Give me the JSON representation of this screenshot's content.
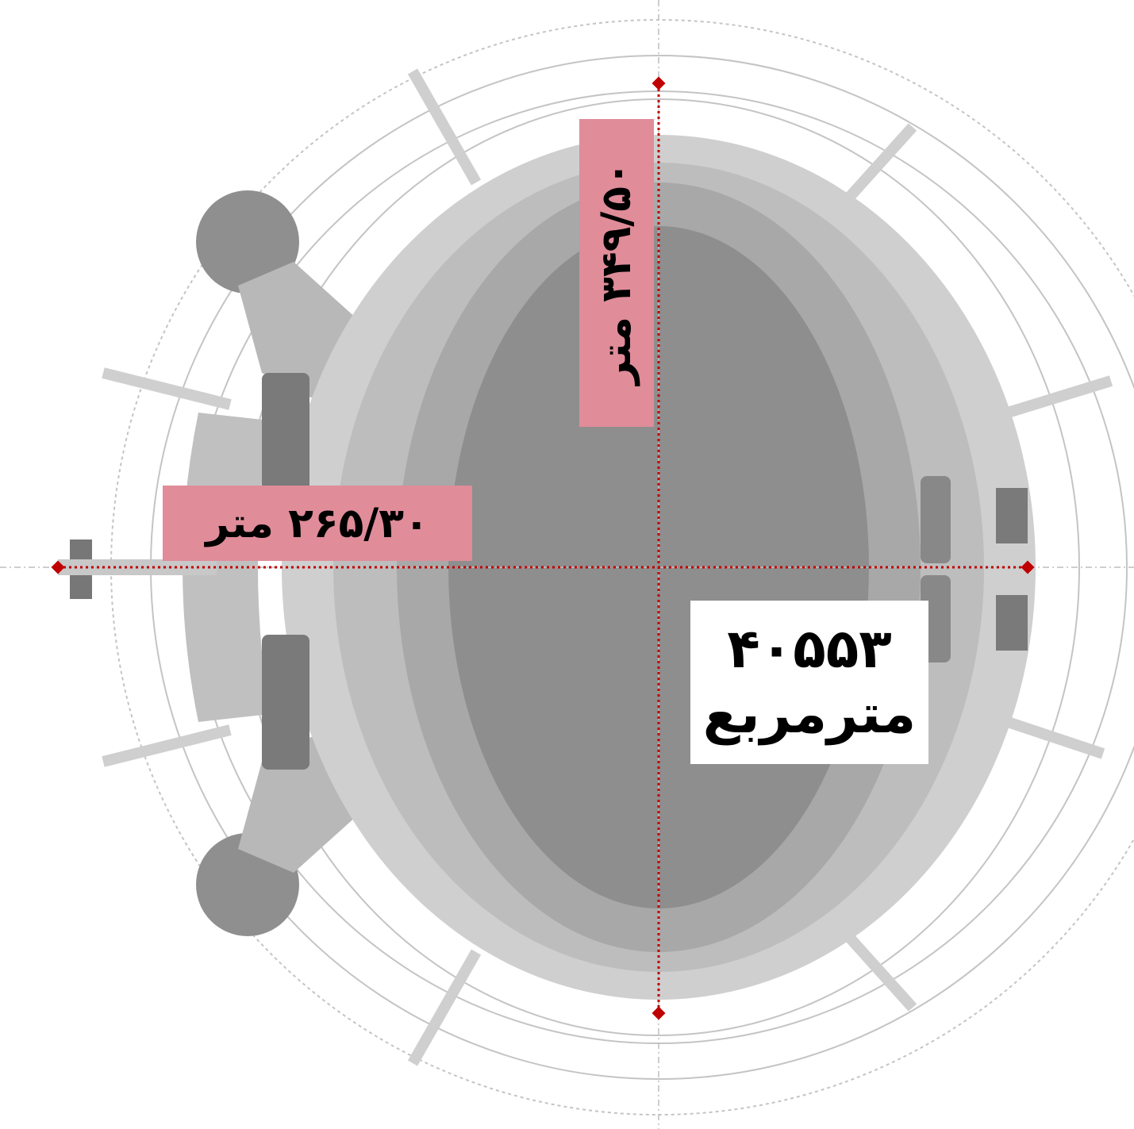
{
  "labels": {
    "width": "۲۶۵/۳۰ متر",
    "length": "۳۴۹/۵۰ متر",
    "area_value": "۴۰۵۵۳",
    "area_unit": "مترمربع"
  }
}
